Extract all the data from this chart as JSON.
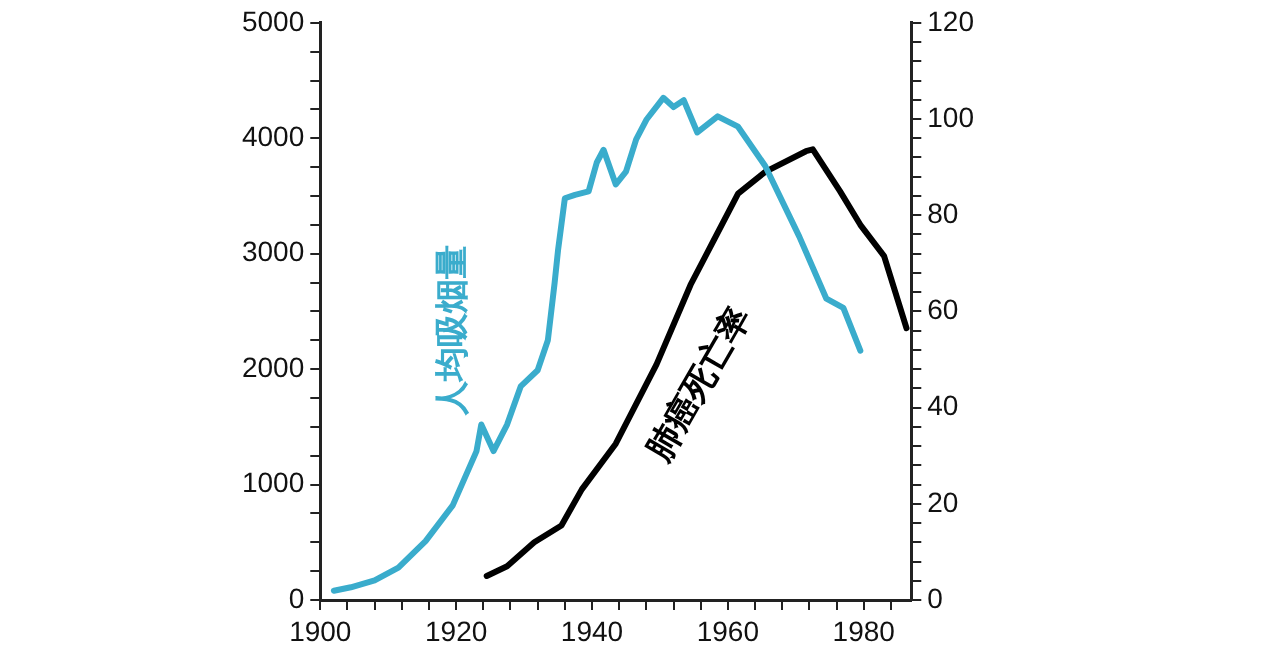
{
  "chart_data": {
    "type": "line",
    "grid": false,
    "legend": false,
    "marker": "none",
    "line_style": "solid",
    "xlim": [
      1900,
      1987
    ],
    "xticks": [
      1900,
      {
        "value": 1904,
        "label": null
      },
      {
        "value": 1908,
        "label": null
      },
      {
        "value": 1912,
        "label": null
      },
      {
        "value": 1916,
        "label": null
      },
      1920,
      {
        "value": 1924,
        "label": null
      },
      {
        "value": 1928,
        "label": null
      },
      {
        "value": 1932,
        "label": null
      },
      {
        "value": 1936,
        "label": null
      },
      1940,
      {
        "value": 1944,
        "label": null
      },
      {
        "value": 1948,
        "label": null
      },
      {
        "value": 1952,
        "label": null
      },
      {
        "value": 1956,
        "label": null
      },
      1960,
      {
        "value": 1964,
        "label": null
      },
      {
        "value": 1968,
        "label": null
      },
      {
        "value": 1972,
        "label": null
      },
      {
        "value": 1976,
        "label": null
      },
      1980,
      {
        "value": 1984,
        "label": null
      }
    ],
    "ylim": [
      0,
      5000
    ],
    "yticks": [
      0,
      {
        "value": 250,
        "label": null
      },
      {
        "value": 500,
        "label": null
      },
      {
        "value": 750,
        "label": null
      },
      1000,
      {
        "value": 1250,
        "label": null
      },
      {
        "value": 1500,
        "label": null
      },
      {
        "value": 1750,
        "label": null
      },
      2000,
      {
        "value": 2250,
        "label": null
      },
      {
        "value": 2500,
        "label": null
      },
      {
        "value": 2750,
        "label": null
      },
      3000,
      {
        "value": 3250,
        "label": null
      },
      {
        "value": 3500,
        "label": null
      },
      {
        "value": 3750,
        "label": null
      },
      4000,
      {
        "value": 4250,
        "label": null
      },
      {
        "value": 4500,
        "label": null
      },
      {
        "value": 4750,
        "label": null
      },
      5000
    ],
    "y2lim": [
      0,
      120
    ],
    "y2ticks": [
      0,
      {
        "value": 4,
        "label": null
      },
      {
        "value": 8,
        "label": null
      },
      {
        "value": 12,
        "label": null
      },
      {
        "value": 16,
        "label": null
      },
      20,
      {
        "value": 24,
        "label": null
      },
      {
        "value": 28,
        "label": null
      },
      {
        "value": 32,
        "label": null
      },
      {
        "value": 36,
        "label": null
      },
      40,
      {
        "value": 44,
        "label": null
      },
      {
        "value": 48,
        "label": null
      },
      {
        "value": 52,
        "label": null
      },
      {
        "value": 56,
        "label": null
      },
      60,
      {
        "value": 64,
        "label": null
      },
      {
        "value": 68,
        "label": null
      },
      {
        "value": 72,
        "label": null
      },
      {
        "value": 76,
        "label": null
      },
      80,
      {
        "value": 84,
        "label": null
      },
      {
        "value": 88,
        "label": null
      },
      {
        "value": 92,
        "label": null
      },
      {
        "value": 96,
        "label": null
      },
      100,
      {
        "value": 104,
        "label": null
      },
      {
        "value": 108,
        "label": null
      },
      {
        "value": 112,
        "label": null
      },
      {
        "value": 116,
        "label": null
      },
      120
    ],
    "series": [
      {
        "name": "人均吸烟量",
        "color": "#3aaccc",
        "x": [
          1902,
          1904.5,
          1908,
          1911.5,
          1915.5,
          1919.5,
          1923,
          1923.7,
          1925.5,
          1927.5,
          1929.5,
          1932,
          1933.5,
          1934.5,
          1935,
          1936,
          1937.5,
          1939.5,
          1940.7,
          1941.7,
          1943.5,
          1945,
          1946.5,
          1948,
          1950.5,
          1952,
          1953.5,
          1955.5,
          1958.5,
          1961.5,
          1965.5,
          1970.5,
          1974.5,
          1977,
          1979.5
        ],
        "values": [
          80,
          110,
          170,
          280,
          510,
          820,
          1290,
          1520,
          1290,
          1520,
          1850,
          1990,
          2250,
          2750,
          3030,
          3480,
          3510,
          3540,
          3790,
          3900,
          3600,
          3710,
          3990,
          4160,
          4350,
          4270,
          4330,
          4050,
          4190,
          4100,
          3760,
          3150,
          2610,
          2530,
          2160
        ]
      },
      {
        "name": "肺癌死亡率",
        "color": "#000000",
        "axis": "y2",
        "x": [
          1924.5,
          1927.5,
          1931.5,
          1935.5,
          1938.5,
          1943.5,
          1949.5,
          1954.5,
          1958,
          1961.5,
          1965.5,
          1971.5,
          1972.5,
          1976.5,
          1979.5,
          1983,
          1986.3
        ],
        "values": [
          5,
          7,
          12,
          15.5,
          23,
          32.5,
          49,
          65.5,
          75,
          84.5,
          89,
          93.3,
          93.7,
          85,
          78,
          71.5,
          56.5
        ]
      }
    ]
  }
}
